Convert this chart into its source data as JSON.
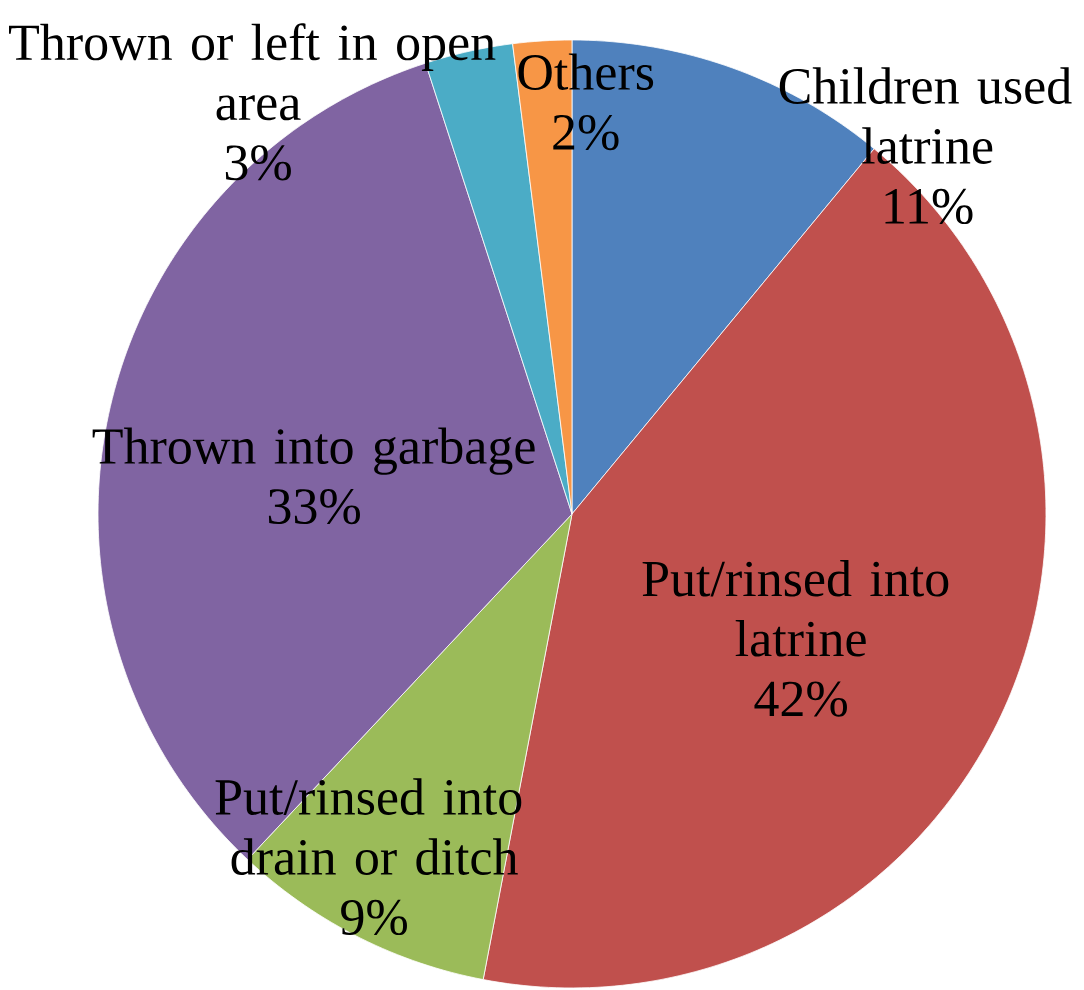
{
  "chart_data": {
    "type": "pie",
    "categories": [
      "Children used latrine",
      "Put/rinsed into latrine",
      "Put/rinsed into drain or ditch",
      "Thrown into garbage",
      "Thrown or left in open area",
      "Others"
    ],
    "values": [
      11,
      42,
      9,
      33,
      3,
      2
    ],
    "value_labels": [
      "11%",
      "42%",
      "9%",
      "33%",
      "3%",
      "2%"
    ],
    "colors": [
      "#4f81bd",
      "#c0504d",
      "#9bbb59",
      "#8064a2",
      "#4bacc6",
      "#f79646"
    ]
  }
}
